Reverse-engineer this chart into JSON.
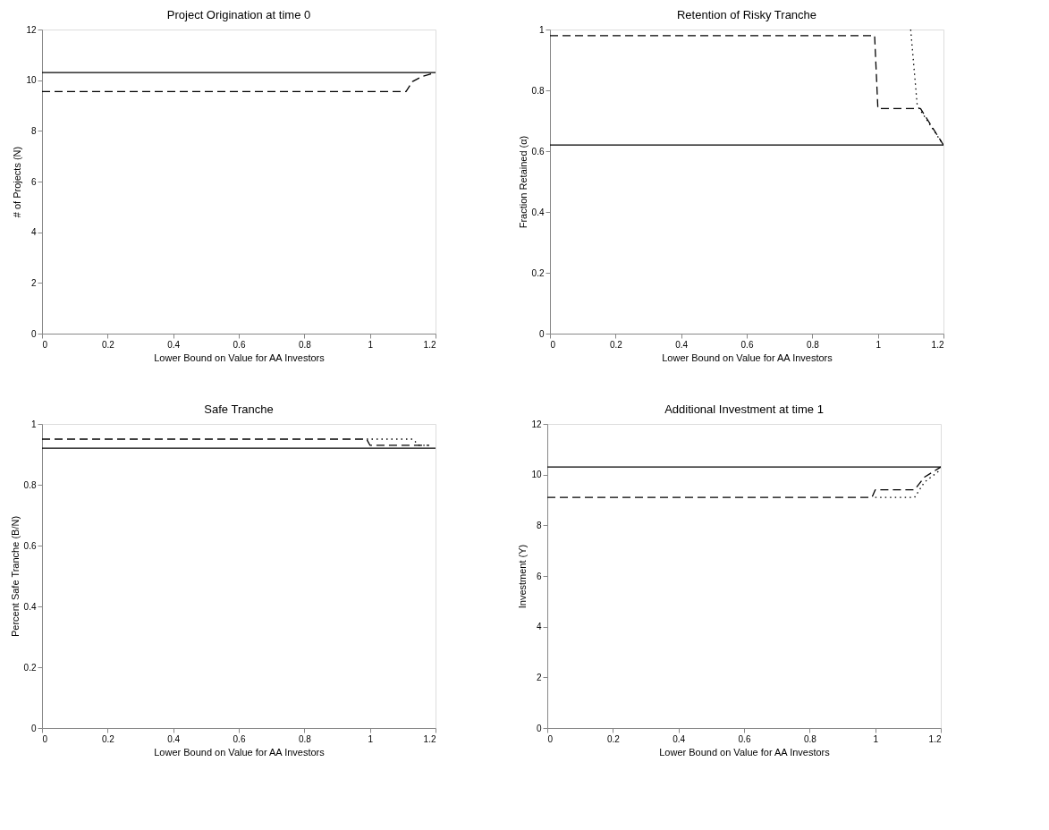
{
  "chart_data": [
    {
      "type": "line",
      "title": "Project Origination at time 0",
      "xlabel": "Lower Bound on Value for AA Investors",
      "ylabel": "# of Projects (N)",
      "xlim": [
        0,
        1.2
      ],
      "xticks": [
        0,
        0.2,
        0.4,
        0.6,
        0.8,
        1,
        1.2
      ],
      "ylim": [
        0,
        12
      ],
      "yticks": [
        0,
        2,
        4,
        6,
        8,
        10,
        12
      ],
      "grid": false,
      "marker": "none",
      "series": [
        {
          "color": "#000000",
          "line_style": "solid",
          "x": [
            0,
            1.2
          ],
          "values": [
            10.3,
            10.3
          ]
        },
        {
          "color": "#000000",
          "line_style": "dashed",
          "x": [
            0,
            1.11,
            1.13,
            1.16,
            1.2
          ],
          "values": [
            9.55,
            9.55,
            9.95,
            10.15,
            10.3
          ]
        }
      ]
    },
    {
      "type": "line",
      "title": "Retention of Risky Tranche",
      "xlabel": "Lower Bound on Value for AA Investors",
      "ylabel": "Fraction Retained (α)",
      "xlim": [
        0,
        1.2
      ],
      "xticks": [
        0,
        0.2,
        0.4,
        0.6,
        0.8,
        1,
        1.2
      ],
      "ylim": [
        0,
        1
      ],
      "yticks": [
        0,
        0.2,
        0.4,
        0.6,
        0.8,
        1
      ],
      "grid": false,
      "marker": "none",
      "series": [
        {
          "color": "#000000",
          "line_style": "solid",
          "x": [
            0,
            1.2
          ],
          "values": [
            0.62,
            0.62
          ]
        },
        {
          "color": "#000000",
          "line_style": "dashed",
          "x": [
            0,
            0.99,
            1.0,
            1.13,
            1.2
          ],
          "values": [
            0.98,
            0.98,
            0.74,
            0.74,
            0.62
          ]
        },
        {
          "color": "#000000",
          "line_style": "dotted",
          "x": [
            1.1,
            1.12,
            1.2
          ],
          "values": [
            1.0,
            0.75,
            0.62
          ]
        }
      ]
    },
    {
      "type": "line",
      "title": "Safe Tranche",
      "xlabel": "Lower Bound on Value for AA Investors",
      "ylabel": "Percent Safe Tranche (B/N)",
      "xlim": [
        0,
        1.2
      ],
      "xticks": [
        0,
        0.2,
        0.4,
        0.6,
        0.8,
        1,
        1.2
      ],
      "ylim": [
        0,
        1
      ],
      "yticks": [
        0,
        0.2,
        0.4,
        0.6,
        0.8,
        1
      ],
      "grid": false,
      "marker": "none",
      "series": [
        {
          "color": "#000000",
          "line_style": "solid",
          "x": [
            0,
            1.2
          ],
          "values": [
            0.92,
            0.92
          ]
        },
        {
          "color": "#000000",
          "line_style": "dashed",
          "x": [
            0,
            0.99,
            1.0,
            1.18
          ],
          "values": [
            0.95,
            0.95,
            0.93,
            0.93
          ]
        },
        {
          "color": "#000000",
          "line_style": "dotted",
          "x": [
            0.99,
            1.13,
            1.15,
            1.18
          ],
          "values": [
            0.95,
            0.95,
            0.93,
            0.93
          ]
        }
      ]
    },
    {
      "type": "line",
      "title": "Additional Investment at time 1",
      "xlabel": "Lower Bound on Value for AA Investors",
      "ylabel": "Investment (Y)",
      "xlim": [
        0,
        1.2
      ],
      "xticks": [
        0,
        0.2,
        0.4,
        0.6,
        0.8,
        1,
        1.2
      ],
      "ylim": [
        0,
        12
      ],
      "yticks": [
        0,
        2,
        4,
        6,
        8,
        10,
        12
      ],
      "grid": false,
      "marker": "none",
      "series": [
        {
          "color": "#000000",
          "line_style": "solid",
          "x": [
            0,
            1.2
          ],
          "values": [
            10.3,
            10.3
          ]
        },
        {
          "color": "#000000",
          "line_style": "dashed",
          "x": [
            0,
            0.99,
            1.0,
            1.12,
            1.15,
            1.2
          ],
          "values": [
            9.1,
            9.1,
            9.4,
            9.4,
            9.9,
            10.3
          ]
        },
        {
          "color": "#000000",
          "line_style": "dotted",
          "x": [
            1.0,
            1.12,
            1.15,
            1.2
          ],
          "values": [
            9.1,
            9.1,
            9.7,
            10.2
          ]
        }
      ]
    }
  ]
}
